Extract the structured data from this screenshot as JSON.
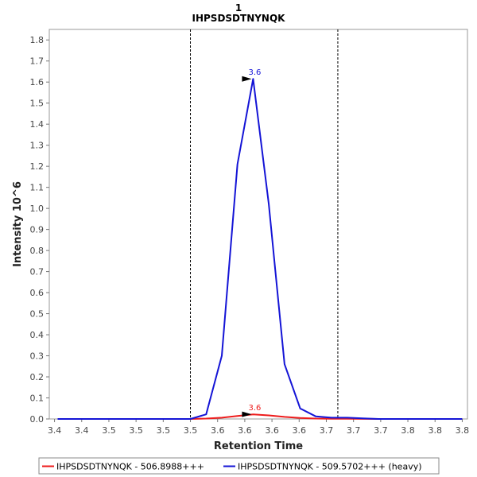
{
  "chart_data": {
    "type": "line",
    "title": "1",
    "subtitle": "IHPSDSDTNYNQK",
    "xlabel": "Retention Time",
    "ylabel": "Intensity 10^6",
    "xlim": [
      3.425,
      3.825
    ],
    "ylim": [
      0,
      1.85
    ],
    "x_tick_values": [
      3.43,
      3.456,
      3.482,
      3.508,
      3.534,
      3.56,
      3.586,
      3.612,
      3.638,
      3.664,
      3.69,
      3.716,
      3.742,
      3.768,
      3.794,
      3.82
    ],
    "x_tick_labels": [
      "3.4",
      "3.4",
      "3.5",
      "3.5",
      "3.5",
      "3.5",
      "3.6",
      "3.6",
      "3.6",
      "3.6",
      "3.7",
      "3.7",
      "3.7",
      "3.8",
      "3.8",
      "3.8"
    ],
    "y_ticks": [
      0.0,
      0.1,
      0.2,
      0.3,
      0.4,
      0.5,
      0.6,
      0.7,
      0.8,
      0.9,
      1.0,
      1.1,
      1.2,
      1.3,
      1.4,
      1.5,
      1.6,
      1.7,
      1.8
    ],
    "y_tick_labels": [
      "0.0",
      "0.1",
      "0.2",
      "0.3",
      "0.4",
      "0.5",
      "0.6",
      "0.7",
      "0.8",
      "0.9",
      "1.0",
      "1.1",
      "1.2",
      "1.3",
      "1.4",
      "1.5",
      "1.6",
      "1.7",
      "1.8"
    ],
    "grid": false,
    "legend_position": "bottom",
    "integration_boundaries": [
      3.56,
      3.701
    ],
    "series": [
      {
        "name": "IHPSDSDTNYNQK - 506.8988+++",
        "color": "#ee1c1c",
        "x": [
          3.433,
          3.56,
          3.575,
          3.59,
          3.605,
          3.62,
          3.635,
          3.65,
          3.665,
          3.68,
          3.695,
          3.71,
          3.725,
          3.74,
          3.82
        ],
        "y": [
          0.0,
          0.0,
          0.002,
          0.006,
          0.014,
          0.022,
          0.017,
          0.01,
          0.005,
          0.002,
          0.001,
          0.001,
          0.0005,
          0.0,
          0.0
        ],
        "peak": {
          "x": 3.62,
          "y": 0.022,
          "label": "3.6"
        }
      },
      {
        "name": "IHPSDSDTNYNQK - 509.5702+++ (heavy)",
        "color": "#1414d6",
        "x": [
          3.433,
          3.56,
          3.575,
          3.59,
          3.605,
          3.62,
          3.635,
          3.65,
          3.665,
          3.68,
          3.695,
          3.71,
          3.725,
          3.74,
          3.82
        ],
        "y": [
          0.0,
          0.0,
          0.022,
          0.3,
          1.21,
          1.615,
          1.02,
          0.26,
          0.05,
          0.012,
          0.006,
          0.006,
          0.003,
          0.0,
          0.0
        ],
        "peak": {
          "x": 3.62,
          "y": 1.615,
          "label": "3.6"
        }
      }
    ]
  }
}
